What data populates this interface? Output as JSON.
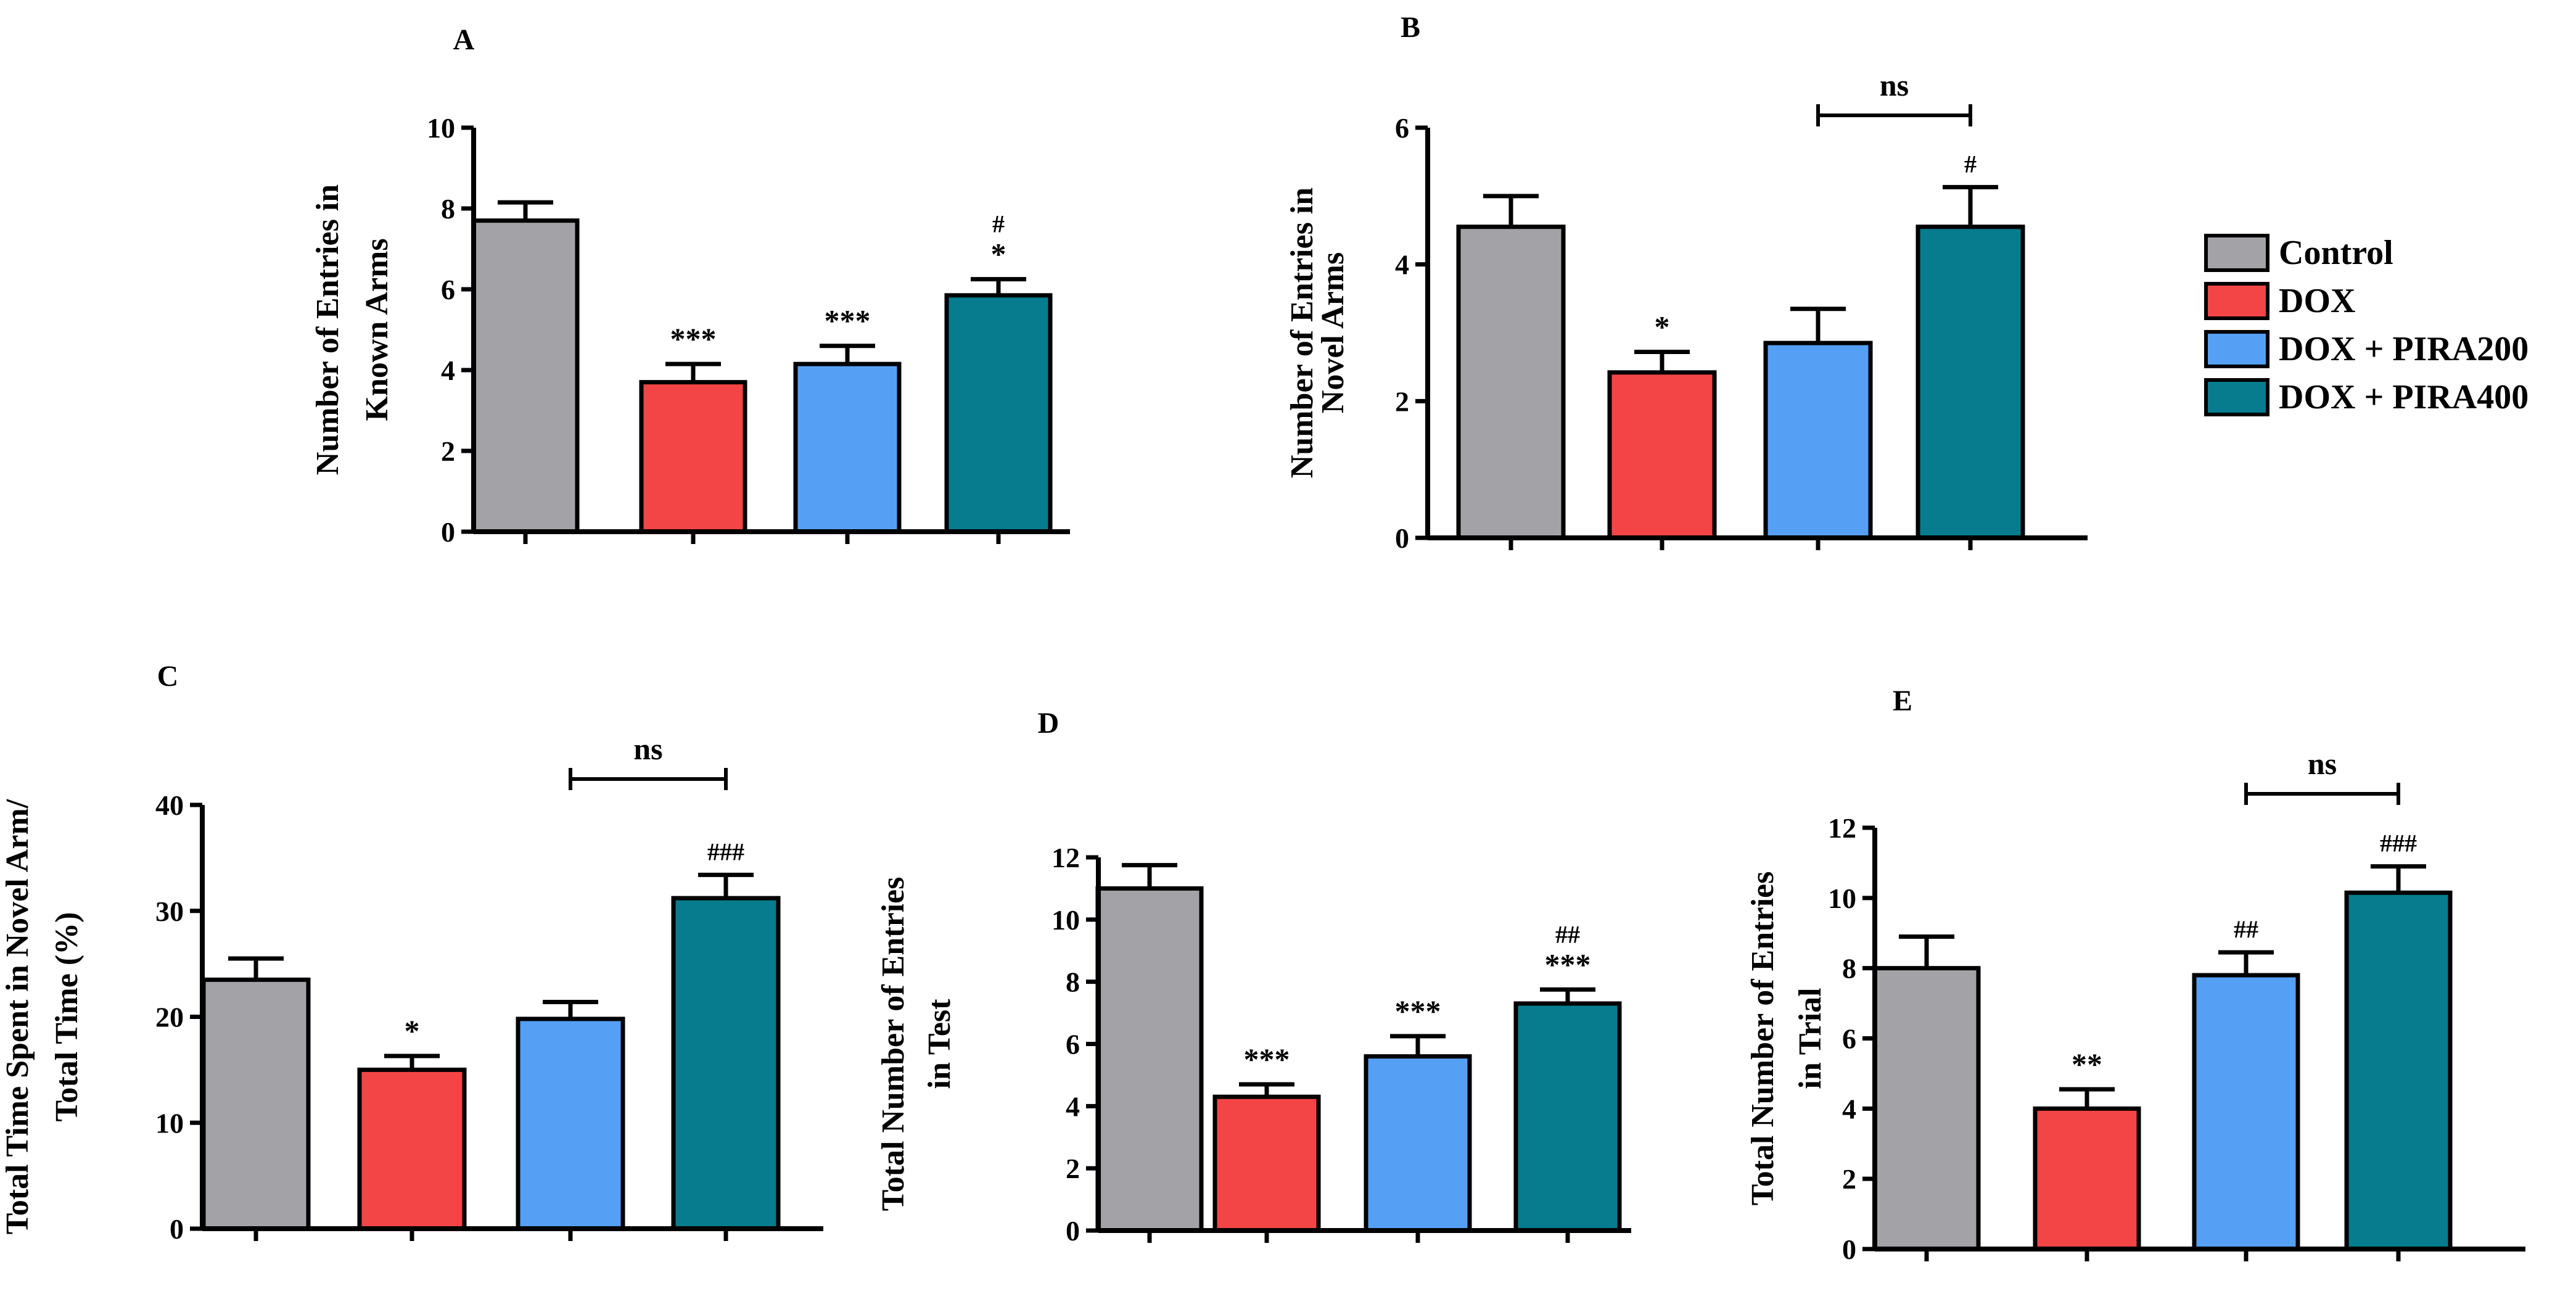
{
  "legend": {
    "entries": [
      {
        "label": "Control",
        "color": "#a3a3a7"
      },
      {
        "label": "DOX",
        "color": "#f34545"
      },
      {
        "label": "DOX + PIRA200",
        "color": "#55a0f5"
      },
      {
        "label": "DOX + PIRA400",
        "color": "#067c8e"
      }
    ]
  },
  "chart_data": [
    {
      "id": "A",
      "type": "bar",
      "title": "A",
      "ylabel": [
        "Number of Entries in",
        "Known Arms"
      ],
      "ylim": [
        0,
        10
      ],
      "yticks": [
        0,
        2,
        4,
        6,
        8,
        10
      ],
      "categories": [
        "Control",
        "DOX",
        "DOX + PIRA200",
        "DOX + PIRA400"
      ],
      "values": [
        7.7,
        3.7,
        4.15,
        5.85
      ],
      "errors": [
        0.45,
        0.45,
        0.45,
        0.4
      ],
      "annotations": [
        [],
        [
          "***"
        ],
        [
          "***"
        ],
        [
          "#",
          "*"
        ]
      ],
      "bracket": null
    },
    {
      "id": "B",
      "type": "bar",
      "title": "B",
      "ylabel": [
        "Number of Entries in",
        "Novel Arms"
      ],
      "ylim": [
        0,
        6
      ],
      "yticks": [
        0,
        2,
        4,
        6
      ],
      "categories": [
        "Control",
        "DOX",
        "DOX + PIRA200",
        "DOX + PIRA400"
      ],
      "values": [
        4.55,
        2.42,
        2.85,
        4.55
      ],
      "errors": [
        0.45,
        0.3,
        0.5,
        0.58
      ],
      "annotations": [
        [],
        [
          "*"
        ],
        [],
        [
          "#"
        ]
      ],
      "bracket": {
        "from": 2,
        "to": 3,
        "label": "ns"
      }
    },
    {
      "id": "C",
      "type": "bar",
      "title": "C",
      "ylabel": [
        "Total Time Spent in Novel Arm/",
        "Total Time (%)"
      ],
      "ylim": [
        0,
        40
      ],
      "yticks": [
        0,
        10,
        20,
        30,
        40
      ],
      "categories": [
        "Control",
        "DOX",
        "DOX + PIRA200",
        "DOX + PIRA400"
      ],
      "values": [
        23.5,
        15.0,
        19.8,
        31.2
      ],
      "errors": [
        2.0,
        1.3,
        1.6,
        2.2
      ],
      "annotations": [
        [],
        [
          "*"
        ],
        [],
        [
          "###"
        ]
      ],
      "bracket": {
        "from": 2,
        "to": 3,
        "label": "ns"
      }
    },
    {
      "id": "D",
      "type": "bar",
      "title": "D",
      "ylabel": [
        "Total Number of  Entries",
        "in Test"
      ],
      "ylim": [
        0,
        12
      ],
      "yticks": [
        0,
        2,
        4,
        6,
        8,
        10,
        12
      ],
      "categories": [
        "Control",
        "DOX",
        "DOX + PIRA200",
        "DOX + PIRA400"
      ],
      "values": [
        11.0,
        4.3,
        5.6,
        7.3
      ],
      "errors": [
        0.75,
        0.4,
        0.65,
        0.45
      ],
      "annotations": [
        [],
        [
          "***"
        ],
        [
          "***"
        ],
        [
          "##",
          "***"
        ]
      ],
      "bracket": null
    },
    {
      "id": "E",
      "type": "bar",
      "title": "E",
      "ylabel": [
        "Total Number of  Entries",
        "in Trial"
      ],
      "ylim": [
        0,
        12
      ],
      "yticks": [
        0,
        2,
        4,
        6,
        8,
        10,
        12
      ],
      "categories": [
        "Control",
        "DOX",
        "DOX + PIRA200",
        "DOX + PIRA400"
      ],
      "values": [
        8.0,
        4.0,
        7.8,
        10.15
      ],
      "errors": [
        0.9,
        0.55,
        0.65,
        0.75
      ],
      "annotations": [
        [],
        [
          "**"
        ],
        [
          "##"
        ],
        [
          "###"
        ]
      ],
      "bracket": {
        "from": 2,
        "to": 3,
        "label": "ns"
      }
    }
  ]
}
